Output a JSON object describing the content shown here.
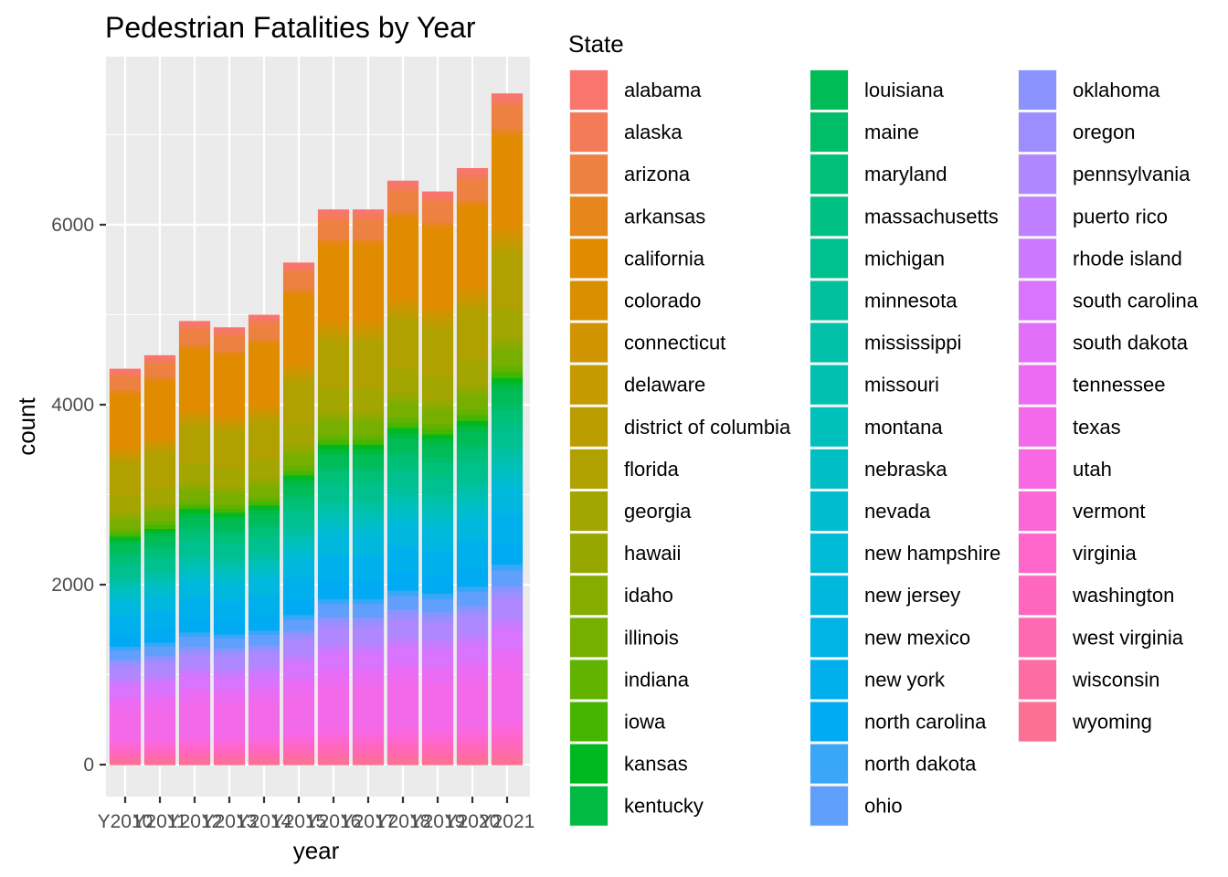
{
  "chart_data": {
    "type": "bar",
    "stacked": true,
    "title": "Pedestrian Fatalities by Year",
    "xlabel": "year",
    "ylabel": "count",
    "ylim": [
      0,
      7500
    ],
    "yticks": [
      0,
      2000,
      4000,
      6000
    ],
    "grid": true,
    "legend_title": "State",
    "legend_position": "right",
    "categories": [
      "Y2010",
      "Y2011",
      "Y2012",
      "Y2013",
      "Y2014",
      "Y2015",
      "Y2016",
      "Y2017",
      "Y2018",
      "Y2019",
      "Y2020",
      "Y2021"
    ],
    "totals": [
      4400,
      4550,
      4930,
      4860,
      5000,
      5580,
      6170,
      6170,
      6490,
      6370,
      6630,
      7460
    ],
    "series": [
      {
        "name": "alabama",
        "color": "#F8766D"
      },
      {
        "name": "alaska",
        "color": "#F37B59"
      },
      {
        "name": "arizona",
        "color": "#ED8141"
      },
      {
        "name": "arkansas",
        "color": "#E7861B"
      },
      {
        "name": "california",
        "color": "#E08B00"
      },
      {
        "name": "colorado",
        "color": "#D89000"
      },
      {
        "name": "connecticut",
        "color": "#CF9400"
      },
      {
        "name": "delaware",
        "color": "#C59900"
      },
      {
        "name": "district of columbia",
        "color": "#BB9D00"
      },
      {
        "name": "florida",
        "color": "#B0A100"
      },
      {
        "name": "georgia",
        "color": "#A3A500"
      },
      {
        "name": "hawaii",
        "color": "#96A800"
      },
      {
        "name": "idaho",
        "color": "#87AC00"
      },
      {
        "name": "illinois",
        "color": "#76AF00"
      },
      {
        "name": "indiana",
        "color": "#62B200"
      },
      {
        "name": "iowa",
        "color": "#46B500"
      },
      {
        "name": "kansas",
        "color": "#00B81F"
      },
      {
        "name": "kentucky",
        "color": "#00BA42"
      },
      {
        "name": "louisiana",
        "color": "#00BC56"
      },
      {
        "name": "maine",
        "color": "#00BD67"
      },
      {
        "name": "maryland",
        "color": "#00BF76"
      },
      {
        "name": "massachusetts",
        "color": "#00C083"
      },
      {
        "name": "michigan",
        "color": "#00C08F"
      },
      {
        "name": "minnesota",
        "color": "#00C19B"
      },
      {
        "name": "mississippi",
        "color": "#00C1A7"
      },
      {
        "name": "missouri",
        "color": "#00C0B1"
      },
      {
        "name": "montana",
        "color": "#00C0BB"
      },
      {
        "name": "nebraska",
        "color": "#00BFC4"
      },
      {
        "name": "nevada",
        "color": "#00BDCD"
      },
      {
        "name": "new hampshire",
        "color": "#00BBD6"
      },
      {
        "name": "new jersey",
        "color": "#00B8DE"
      },
      {
        "name": "new mexico",
        "color": "#00B4E5"
      },
      {
        "name": "new york",
        "color": "#00B0EC"
      },
      {
        "name": "north carolina",
        "color": "#00ABF3"
      },
      {
        "name": "north dakota",
        "color": "#39A6F8"
      },
      {
        "name": "ohio",
        "color": "#619FFC"
      },
      {
        "name": "oklahoma",
        "color": "#8B93FF"
      },
      {
        "name": "oregon",
        "color": "#9E8DFF"
      },
      {
        "name": "pennsylvania",
        "color": "#AF87FF"
      },
      {
        "name": "puerto rico",
        "color": "#BE80FF"
      },
      {
        "name": "rhode island",
        "color": "#CC79FF"
      },
      {
        "name": "south carolina",
        "color": "#D874FD"
      },
      {
        "name": "south dakota",
        "color": "#E26FF8"
      },
      {
        "name": "tennessee",
        "color": "#EB6BF2"
      },
      {
        "name": "texas",
        "color": "#F26AEA"
      },
      {
        "name": "utah",
        "color": "#F868E2"
      },
      {
        "name": "vermont",
        "color": "#FC67D8"
      },
      {
        "name": "virginia",
        "color": "#FF66CC"
      },
      {
        "name": "washington",
        "color": "#FF67BF"
      },
      {
        "name": "west virginia",
        "color": "#FF69B1"
      },
      {
        "name": "wisconsin",
        "color": "#FD6CA3"
      },
      {
        "name": "wyoming",
        "color": "#FB7093"
      }
    ]
  }
}
